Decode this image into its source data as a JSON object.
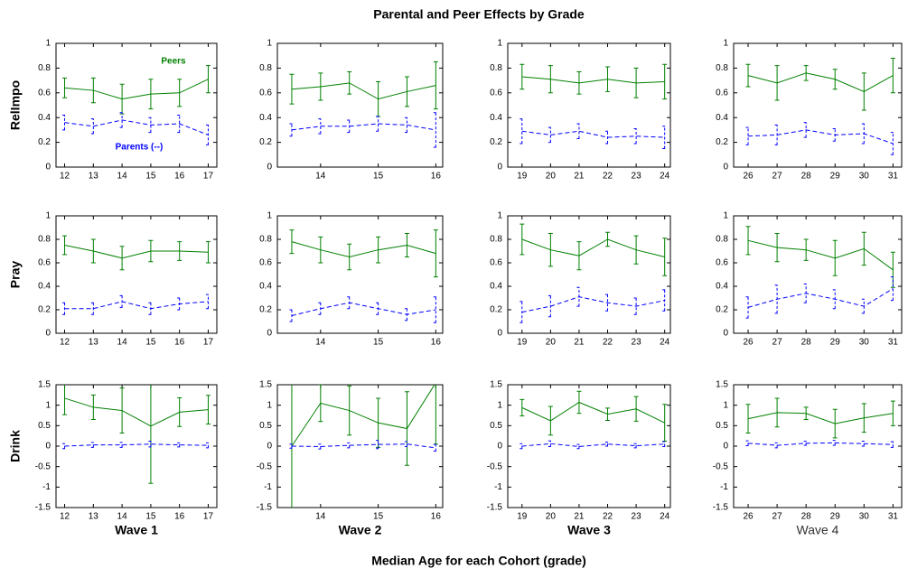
{
  "title": "Parental and Peer Effects by Grade",
  "xlabel": "Median Age for each Cohort (grade)",
  "chart_data": [
    {
      "type": "line",
      "ylabel": "RelImpo",
      "x": [
        12,
        13,
        14,
        15,
        16,
        17
      ],
      "xlim": [
        11.7,
        17.3
      ],
      "xticks": [
        12,
        13,
        14,
        15,
        16,
        17
      ],
      "ylim": [
        0,
        1
      ],
      "yticks": [
        0,
        0.2,
        0.4,
        0.6,
        0.8,
        1
      ],
      "series": [
        {
          "name": "Peers",
          "color": "#008000",
          "values": [
            0.64,
            0.62,
            0.55,
            0.59,
            0.6,
            0.71
          ],
          "errors": [
            0.08,
            0.1,
            0.12,
            0.12,
            0.11,
            0.11
          ]
        },
        {
          "name": "Parents (--)",
          "color": "#0000ff",
          "dashed": true,
          "values": [
            0.36,
            0.33,
            0.38,
            0.34,
            0.35,
            0.26
          ],
          "errors": [
            0.06,
            0.06,
            0.06,
            0.06,
            0.07,
            0.08
          ]
        }
      ]
    },
    {
      "type": "line",
      "x": [
        13.5,
        14,
        14.5,
        15,
        15.5,
        16
      ],
      "xlim": [
        13.25,
        16.12
      ],
      "xticks": [
        14,
        15,
        16
      ],
      "ylim": [
        0,
        1
      ],
      "yticks": [
        0,
        0.2,
        0.4,
        0.6,
        0.8,
        1
      ],
      "series": [
        {
          "color": "#008000",
          "values": [
            0.63,
            0.65,
            0.68,
            0.55,
            0.61,
            0.66
          ],
          "errors": [
            0.12,
            0.11,
            0.09,
            0.14,
            0.12,
            0.19
          ]
        },
        {
          "color": "#0000ff",
          "dashed": true,
          "values": [
            0.3,
            0.33,
            0.33,
            0.35,
            0.34,
            0.3
          ],
          "errors": [
            0.05,
            0.06,
            0.05,
            0.06,
            0.06,
            0.14
          ]
        }
      ]
    },
    {
      "type": "line",
      "x": [
        19,
        20,
        21,
        22,
        23,
        24
      ],
      "xlim": [
        18.5,
        24.2
      ],
      "xticks": [
        19,
        20,
        21,
        22,
        23,
        24
      ],
      "ylim": [
        0,
        1
      ],
      "yticks": [
        0,
        0.2,
        0.4,
        0.6,
        0.8,
        1
      ],
      "series": [
        {
          "color": "#008000",
          "values": [
            0.73,
            0.71,
            0.68,
            0.71,
            0.68,
            0.69
          ],
          "errors": [
            0.1,
            0.11,
            0.09,
            0.1,
            0.12,
            0.14
          ]
        },
        {
          "color": "#0000ff",
          "dashed": true,
          "values": [
            0.29,
            0.26,
            0.29,
            0.24,
            0.25,
            0.24
          ],
          "errors": [
            0.1,
            0.06,
            0.06,
            0.05,
            0.06,
            0.09
          ]
        }
      ]
    },
    {
      "type": "line",
      "x": [
        26,
        27,
        28,
        29,
        30,
        31
      ],
      "xlim": [
        25.5,
        31.3
      ],
      "xticks": [
        26,
        27,
        28,
        29,
        30,
        31
      ],
      "ylim": [
        0,
        1
      ],
      "yticks": [
        0,
        0.2,
        0.4,
        0.6,
        0.8,
        1
      ],
      "series": [
        {
          "color": "#008000",
          "values": [
            0.74,
            0.68,
            0.76,
            0.71,
            0.61,
            0.74
          ],
          "errors": [
            0.09,
            0.14,
            0.06,
            0.08,
            0.15,
            0.14
          ]
        },
        {
          "color": "#0000ff",
          "dashed": true,
          "values": [
            0.25,
            0.26,
            0.3,
            0.26,
            0.27,
            0.19
          ],
          "errors": [
            0.07,
            0.08,
            0.06,
            0.05,
            0.08,
            0.09
          ]
        }
      ]
    },
    {
      "type": "line",
      "ylabel": "Pray",
      "x": [
        12,
        13,
        14,
        15,
        16,
        17
      ],
      "xlim": [
        11.7,
        17.3
      ],
      "xticks": [
        12,
        13,
        14,
        15,
        16,
        17
      ],
      "ylim": [
        0,
        1
      ],
      "yticks": [
        0,
        0.2,
        0.4,
        0.6,
        0.8,
        1
      ],
      "series": [
        {
          "color": "#008000",
          "values": [
            0.75,
            0.7,
            0.64,
            0.7,
            0.7,
            0.69
          ],
          "errors": [
            0.08,
            0.1,
            0.1,
            0.09,
            0.08,
            0.09
          ]
        },
        {
          "color": "#0000ff",
          "dashed": true,
          "values": [
            0.21,
            0.21,
            0.27,
            0.21,
            0.25,
            0.27
          ],
          "errors": [
            0.05,
            0.05,
            0.05,
            0.05,
            0.05,
            0.06
          ]
        }
      ]
    },
    {
      "type": "line",
      "x": [
        13.5,
        14,
        14.5,
        15,
        15.5,
        16
      ],
      "xlim": [
        13.25,
        16.12
      ],
      "xticks": [
        14,
        15,
        16
      ],
      "ylim": [
        0,
        1
      ],
      "yticks": [
        0,
        0.2,
        0.4,
        0.6,
        0.8,
        1
      ],
      "series": [
        {
          "color": "#008000",
          "values": [
            0.78,
            0.71,
            0.65,
            0.71,
            0.75,
            0.68
          ],
          "errors": [
            0.1,
            0.11,
            0.11,
            0.11,
            0.1,
            0.2
          ]
        },
        {
          "color": "#0000ff",
          "dashed": true,
          "values": [
            0.15,
            0.21,
            0.26,
            0.21,
            0.16,
            0.2
          ],
          "errors": [
            0.05,
            0.05,
            0.05,
            0.05,
            0.05,
            0.11
          ]
        }
      ]
    },
    {
      "type": "line",
      "x": [
        19,
        20,
        21,
        22,
        23,
        24
      ],
      "xlim": [
        18.5,
        24.2
      ],
      "xticks": [
        19,
        20,
        21,
        22,
        23,
        24
      ],
      "ylim": [
        0,
        1
      ],
      "yticks": [
        0,
        0.2,
        0.4,
        0.6,
        0.8,
        1
      ],
      "series": [
        {
          "color": "#008000",
          "values": [
            0.8,
            0.71,
            0.66,
            0.8,
            0.71,
            0.65
          ],
          "errors": [
            0.13,
            0.14,
            0.12,
            0.06,
            0.12,
            0.16
          ]
        },
        {
          "color": "#0000ff",
          "dashed": true,
          "values": [
            0.18,
            0.23,
            0.31,
            0.26,
            0.23,
            0.28
          ],
          "errors": [
            0.09,
            0.09,
            0.08,
            0.07,
            0.07,
            0.09
          ]
        }
      ]
    },
    {
      "type": "line",
      "x": [
        26,
        27,
        28,
        29,
        30,
        31
      ],
      "xlim": [
        25.5,
        31.3
      ],
      "xticks": [
        26,
        27,
        28,
        29,
        30,
        31
      ],
      "ylim": [
        0,
        1
      ],
      "yticks": [
        0,
        0.2,
        0.4,
        0.6,
        0.8,
        1
      ],
      "series": [
        {
          "color": "#008000",
          "values": [
            0.79,
            0.73,
            0.71,
            0.64,
            0.72,
            0.54
          ],
          "errors": [
            0.12,
            0.12,
            0.09,
            0.15,
            0.14,
            0.15
          ]
        },
        {
          "color": "#0000ff",
          "dashed": true,
          "values": [
            0.22,
            0.29,
            0.34,
            0.29,
            0.23,
            0.38
          ],
          "errors": [
            0.09,
            0.12,
            0.08,
            0.08,
            0.06,
            0.1
          ]
        }
      ]
    },
    {
      "type": "line",
      "ylabel": "Drink",
      "xlabel": "Wave 1",
      "x": [
        12,
        13,
        14,
        15,
        16,
        17
      ],
      "xlim": [
        11.7,
        17.3
      ],
      "xticks": [
        12,
        13,
        14,
        15,
        16,
        17
      ],
      "ylim": [
        -1.5,
        1.5
      ],
      "yticks": [
        -1.5,
        -1,
        -0.5,
        0,
        0.5,
        1,
        1.5
      ],
      "series": [
        {
          "color": "#008000",
          "values": [
            1.17,
            0.95,
            0.87,
            0.49,
            0.83,
            0.89
          ],
          "errors": [
            0.4,
            0.3,
            0.55,
            1.4,
            0.35,
            0.35
          ]
        },
        {
          "color": "#0000ff",
          "dashed": true,
          "values": [
            0,
            0.03,
            0.03,
            0.05,
            0.03,
            0.02
          ],
          "errors": [
            0.06,
            0.06,
            0.06,
            0.07,
            0.05,
            0.06
          ]
        }
      ]
    },
    {
      "type": "line",
      "xlabel": "Wave 2",
      "x": [
        13.5,
        14,
        14.5,
        15,
        15.5,
        16
      ],
      "xlim": [
        13.25,
        16.12
      ],
      "xticks": [
        14,
        15,
        16
      ],
      "ylim": [
        -1.5,
        1.5
      ],
      "yticks": [
        -1.5,
        -1,
        -0.5,
        0,
        0.5,
        1,
        1.5
      ],
      "series": [
        {
          "color": "#008000",
          "values": [
            0,
            1.05,
            0.87,
            0.57,
            0.43,
            1.55
          ],
          "errors": [
            1.6,
            0.45,
            0.6,
            0.6,
            0.9,
            1.5
          ]
        },
        {
          "color": "#0000ff",
          "dashed": true,
          "values": [
            0,
            -0.01,
            0.02,
            0.04,
            0.05,
            -0.04
          ],
          "errors": [
            0.05,
            0.06,
            0.06,
            0.1,
            0.06,
            0.08
          ]
        }
      ]
    },
    {
      "type": "line",
      "xlabel": "Wave 3",
      "x": [
        19,
        20,
        21,
        22,
        23,
        24
      ],
      "xlim": [
        18.5,
        24.2
      ],
      "xticks": [
        19,
        20,
        21,
        22,
        23,
        24
      ],
      "ylim": [
        -1.5,
        1.5
      ],
      "yticks": [
        -1.5,
        -1,
        -0.5,
        0,
        0.5,
        1,
        1.5
      ],
      "series": [
        {
          "color": "#008000",
          "values": [
            0.94,
            0.62,
            1.07,
            0.78,
            0.91,
            0.57
          ],
          "errors": [
            0.2,
            0.35,
            0.27,
            0.15,
            0.3,
            0.45
          ]
        },
        {
          "color": "#0000ff",
          "dashed": true,
          "values": [
            0,
            0.06,
            -0.01,
            0.05,
            0.01,
            0.05
          ],
          "errors": [
            0.06,
            0.07,
            0.05,
            0.05,
            0.05,
            0.06
          ]
        }
      ]
    },
    {
      "type": "line",
      "xlabel": "Wave 4",
      "xlabel_weight": "normal",
      "x": [
        26,
        27,
        28,
        29,
        30,
        31
      ],
      "xlim": [
        25.5,
        31.3
      ],
      "xticks": [
        26,
        27,
        28,
        29,
        30,
        31
      ],
      "ylim": [
        -1.5,
        1.5
      ],
      "yticks": [
        -1.5,
        -1,
        -0.5,
        0,
        0.5,
        1,
        1.5
      ],
      "series": [
        {
          "color": "#008000",
          "values": [
            0.67,
            0.82,
            0.8,
            0.55,
            0.69,
            0.8
          ],
          "errors": [
            0.35,
            0.35,
            0.15,
            0.35,
            0.35,
            0.3
          ]
        },
        {
          "color": "#0000ff",
          "dashed": true,
          "values": [
            0.07,
            0.02,
            0.07,
            0.08,
            0.06,
            0.04
          ],
          "errors": [
            0.06,
            0.06,
            0.05,
            0.06,
            0.06,
            0.07
          ]
        }
      ]
    }
  ]
}
